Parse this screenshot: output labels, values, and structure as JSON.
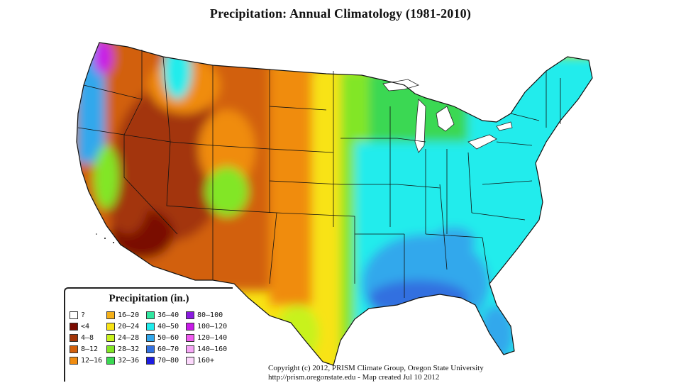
{
  "title": "Precipitation:  Annual Climatology (1981-2010)",
  "legend": {
    "title": "Precipitation (in.)",
    "items": [
      {
        "label": "?",
        "color": "#ffffff"
      },
      {
        "label": "<4",
        "color": "#7a0a00"
      },
      {
        "label": "4–8",
        "color": "#a33508"
      },
      {
        "label": "8–12",
        "color": "#d2600b"
      },
      {
        "label": "12–16",
        "color": "#f08c10"
      },
      {
        "label": "16–20",
        "color": "#f4b019"
      },
      {
        "label": "20–24",
        "color": "#f8e314"
      },
      {
        "label": "24–28",
        "color": "#c8f21e"
      },
      {
        "label": "28–32",
        "color": "#82e626"
      },
      {
        "label": "32–36",
        "color": "#3ad852"
      },
      {
        "label": "36–40",
        "color": "#30e6a0"
      },
      {
        "label": "40–50",
        "color": "#20ecec"
      },
      {
        "label": "50–60",
        "color": "#32a8ec"
      },
      {
        "label": "60–70",
        "color": "#3270e0"
      },
      {
        "label": "70–80",
        "color": "#1c1ce0"
      },
      {
        "label": "80–100",
        "color": "#8a1ae0"
      },
      {
        "label": "100–120",
        "color": "#c81ae8"
      },
      {
        "label": "120–140",
        "color": "#f05cf0"
      },
      {
        "label": "140–160",
        "color": "#f6a6f6"
      },
      {
        "label": "160+",
        "color": "#fcd8fc"
      }
    ]
  },
  "copyright": {
    "line1": "Copyright (c) 2012, PRISM Climate Group, Oregon State University",
    "line2": "http://prism.oregonstate.edu  -  Map created Jul 10 2012"
  },
  "colors": {
    "dry_deep": "#7a0a00",
    "dry": "#d2600b",
    "orange": "#f08c10",
    "yellow": "#f8e314",
    "green": "#82e626",
    "cyan": "#20ecec",
    "blue": "#3270e0"
  }
}
